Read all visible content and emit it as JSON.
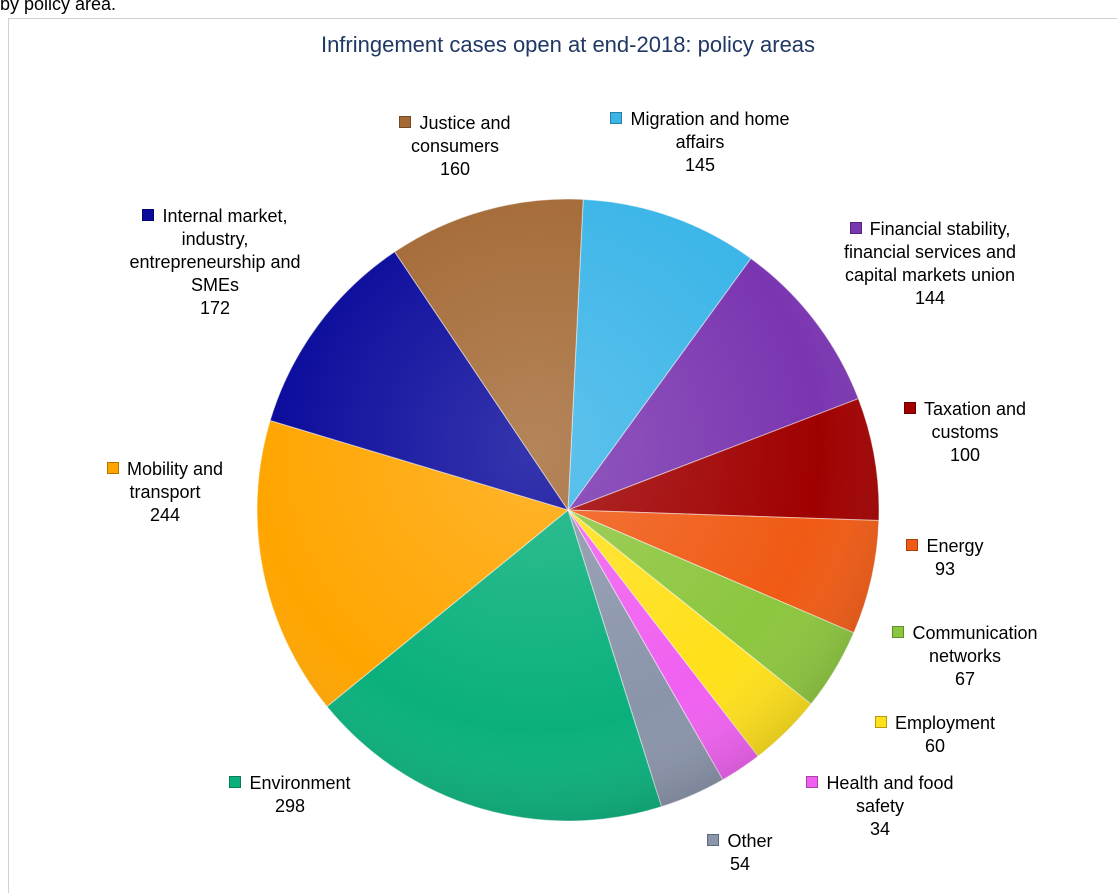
{
  "caption": "by policy area.",
  "chart_data": {
    "type": "pie",
    "title": "Infringement cases open at end-2018: policy areas",
    "categories": [
      "Migration and home affairs",
      "Financial stability, financial services and capital markets union",
      "Taxation and customs",
      "Energy",
      "Communication networks",
      "Employment",
      "Health and food safety",
      "Other",
      "Environment",
      "Mobility and transport",
      "Internal market, industry, entrepreneurship and SMEs",
      "Justice and consumers"
    ],
    "values": [
      145,
      144,
      100,
      93,
      67,
      60,
      34,
      54,
      298,
      244,
      172,
      160
    ],
    "colors": [
      "#3bb5e8",
      "#7a35b0",
      "#a00000",
      "#f05a14",
      "#8cc63e",
      "#ffe01a",
      "#f060f0",
      "#8a94aa",
      "#0ab07c",
      "#ffa500",
      "#0a0a9c",
      "#a46a36"
    ]
  }
}
